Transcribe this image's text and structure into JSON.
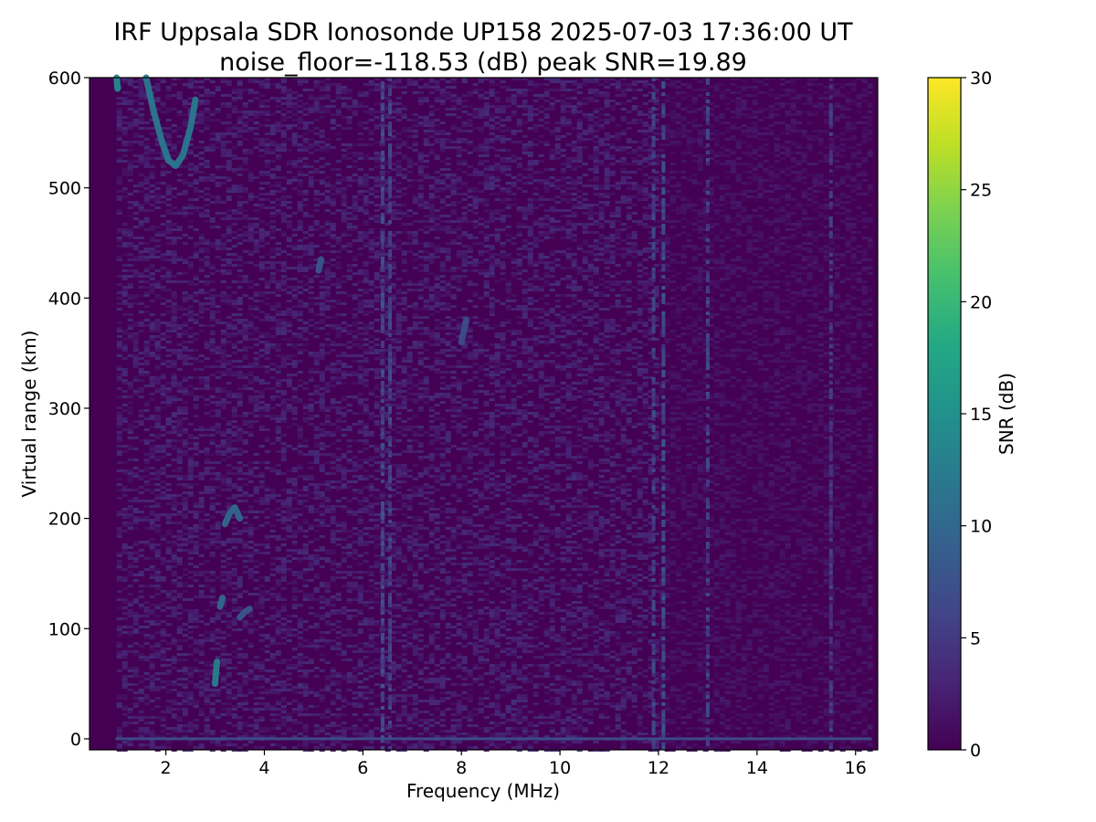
{
  "chart_data": {
    "type": "heatmap",
    "title": "IRF Uppsala SDR Ionosonde UP158 2025-07-03 17:36:00  UT",
    "subtitle": "noise_floor=-118.53 (dB) peak SNR=19.89",
    "xlabel": "Frequency (MHz)",
    "ylabel": "Virtual range (km)",
    "xlim": [
      0.45,
      16.45
    ],
    "ylim": [
      -10,
      600
    ],
    "x_ticks": [
      2,
      4,
      6,
      8,
      10,
      12,
      14,
      16
    ],
    "y_ticks": [
      0,
      100,
      200,
      300,
      400,
      500,
      600
    ],
    "colorbar": {
      "label": "SNR (dB)",
      "colormap": "viridis",
      "range": [
        0,
        30
      ],
      "ticks": [
        0,
        5,
        10,
        15,
        20,
        25,
        30
      ]
    },
    "grid": false,
    "background_colour": "#440154",
    "traces": [
      {
        "freq": [
          1.6,
          1.75,
          1.9,
          2.05,
          2.2,
          2.35,
          2.5,
          2.6
        ],
        "range": [
          600,
          570,
          545,
          525,
          520,
          530,
          555,
          580
        ],
        "snr": 12
      },
      {
        "freq": [
          1.0,
          1.02
        ],
        "range": [
          600,
          590
        ],
        "snr": 14
      },
      {
        "freq": [
          3.0,
          3.02,
          3.04
        ],
        "range": [
          50,
          62,
          70
        ],
        "snr": 13
      },
      {
        "freq": [
          3.1,
          3.15
        ],
        "range": [
          120,
          128
        ],
        "snr": 10
      },
      {
        "freq": [
          3.2,
          3.3,
          3.4,
          3.5
        ],
        "range": [
          195,
          205,
          210,
          200
        ],
        "snr": 10
      },
      {
        "freq": [
          3.5,
          3.6,
          3.7
        ],
        "range": [
          110,
          115,
          118
        ],
        "snr": 8
      },
      {
        "freq": [
          5.1,
          5.15
        ],
        "range": [
          425,
          435
        ],
        "snr": 8
      },
      {
        "freq": [
          8.0,
          8.05,
          8.1
        ],
        "range": [
          360,
          370,
          380
        ],
        "snr": 7
      },
      {
        "freq": [
          1.0,
          16.3
        ],
        "range": [
          0,
          0
        ],
        "snr": 7
      }
    ],
    "vertical_bands": [
      {
        "freq": 6.4,
        "snr": 7
      },
      {
        "freq": 6.55,
        "snr": 6
      },
      {
        "freq": 11.9,
        "snr": 6
      },
      {
        "freq": 12.1,
        "snr": 7
      },
      {
        "freq": 13.0,
        "snr": 6
      },
      {
        "freq": 15.5,
        "snr": 5
      }
    ]
  }
}
